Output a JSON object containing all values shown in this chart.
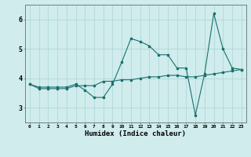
{
  "title": "",
  "xlabel": "Humidex (Indice chaleur)",
  "x_values": [
    0,
    1,
    2,
    3,
    4,
    5,
    6,
    7,
    8,
    9,
    10,
    11,
    12,
    13,
    14,
    15,
    16,
    17,
    18,
    19,
    20,
    21,
    22,
    23
  ],
  "line1_y": [
    3.8,
    3.7,
    3.7,
    3.7,
    3.7,
    3.8,
    3.6,
    3.35,
    3.35,
    3.8,
    4.55,
    5.35,
    5.25,
    5.1,
    4.8,
    4.8,
    4.35,
    4.35,
    2.75,
    4.15,
    6.2,
    5.0,
    4.35,
    4.3
  ],
  "line2_y": [
    3.8,
    3.65,
    3.65,
    3.65,
    3.65,
    3.75,
    3.75,
    3.75,
    3.9,
    3.9,
    3.95,
    3.95,
    4.0,
    4.05,
    4.05,
    4.1,
    4.1,
    4.05,
    4.05,
    4.1,
    4.15,
    4.2,
    4.25,
    4.3
  ],
  "line_color": "#1a7070",
  "bg_color": "#d0ecec",
  "grid_color": "#aad4d4",
  "ylim": [
    2.5,
    6.5
  ],
  "yticks": [
    3,
    4,
    5,
    6
  ],
  "xlim": [
    -0.5,
    23.5
  ],
  "figwidth": 3.2,
  "figheight": 2.0,
  "dpi": 100
}
